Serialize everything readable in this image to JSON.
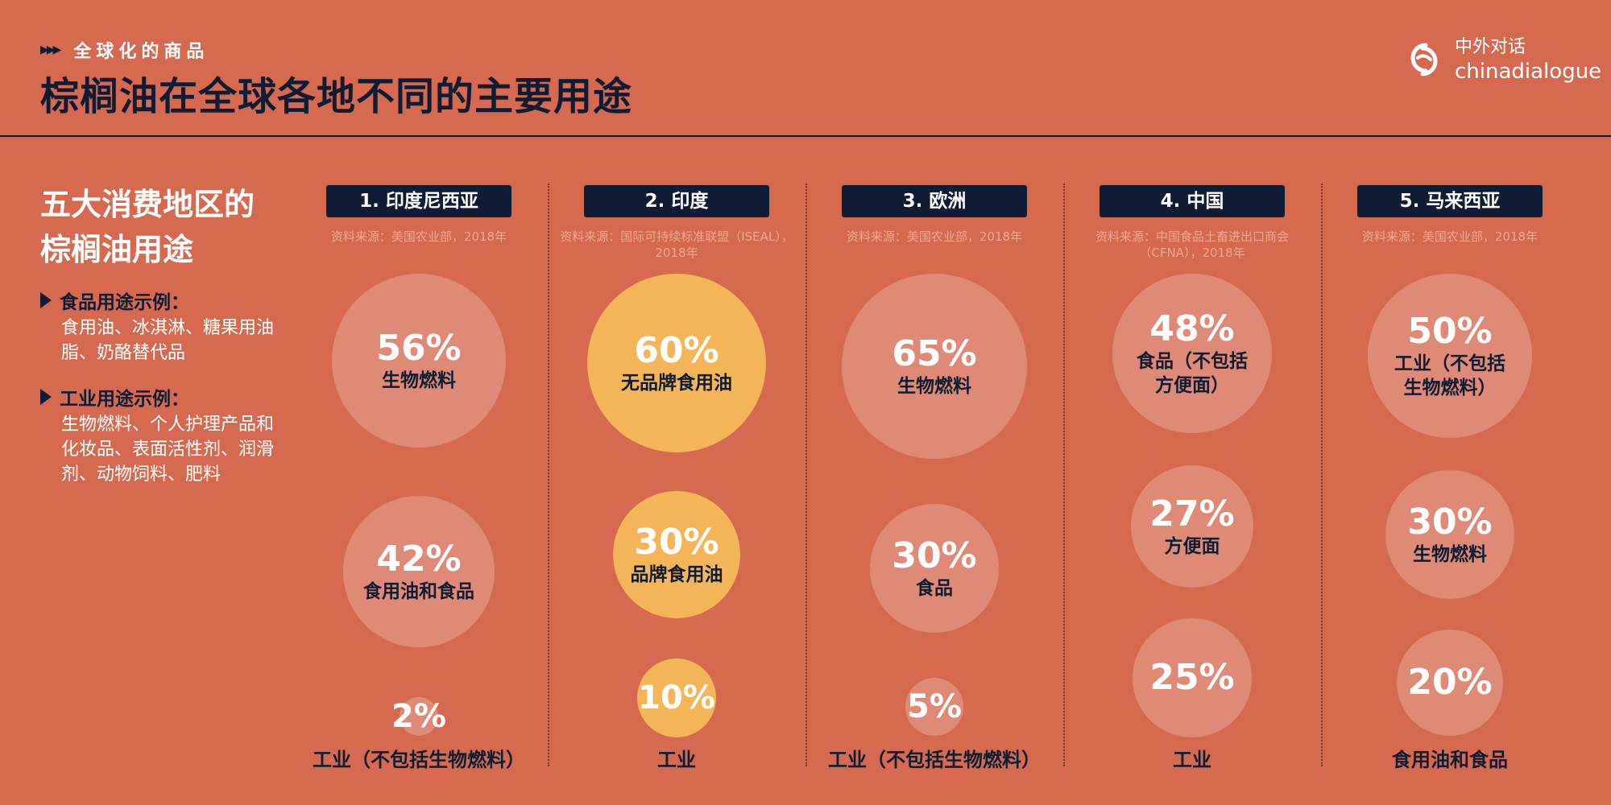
{
  "header": {
    "kicker": "全球化的商品",
    "title": "棕榈油在全球各地不同的主要用途"
  },
  "logo": {
    "cn": "中外对话",
    "en": "chinadialogue"
  },
  "sidebar": {
    "title_line1": "五大消费地区的",
    "title_line2": "棕榈油用途",
    "food_heading": "食品用途示例：",
    "food_body": "食用油、冰淇淋、糖果用油脂、奶酪替代品",
    "industry_heading": "工业用途示例：",
    "industry_body": "生物燃料、个人护理产品和化妆品、表面活性剂、润滑剂、动物饲料、肥料"
  },
  "columns": [
    {
      "heading": "1. 印度尼西亚",
      "source": "资料来源：美国农业部，2018年",
      "items": [
        {
          "pct": "56%",
          "label": "生物燃料",
          "value": 56
        },
        {
          "pct": "42%",
          "label": "食用油和食品",
          "value": 42
        },
        {
          "pct": "2%",
          "label": "",
          "value": 2
        }
      ],
      "bottom_label": "工业（不包括生物燃料）"
    },
    {
      "heading": "2. 印度",
      "source": "资料来源：国际可持续标准联盟（ISEAL），2018年",
      "items": [
        {
          "pct": "60%",
          "label": "无品牌食用油",
          "value": 60
        },
        {
          "pct": "30%",
          "label": "品牌食用油",
          "value": 30
        },
        {
          "pct": "10%",
          "label": "",
          "value": 10
        }
      ],
      "bottom_label": "工业"
    },
    {
      "heading": "3. 欧洲",
      "source": "资料来源：美国农业部，2018年",
      "items": [
        {
          "pct": "65%",
          "label": "生物燃料",
          "value": 65
        },
        {
          "pct": "30%",
          "label": "食品",
          "value": 30
        },
        {
          "pct": "5%",
          "label": "",
          "value": 5
        }
      ],
      "bottom_label": "工业（不包括生物燃料）"
    },
    {
      "heading": "4. 中国",
      "source": "资料来源：中国食品土畜进出口商会（CFNA），2018年",
      "items": [
        {
          "pct": "48%",
          "label": "食品（不包括方便面）",
          "value": 48
        },
        {
          "pct": "27%",
          "label": "方便面",
          "value": 27
        },
        {
          "pct": "25%",
          "label": "",
          "value": 25
        }
      ],
      "bottom_label": "工业"
    },
    {
      "heading": "5. 马来西亚",
      "source": "资料来源：美国农业部，2018年",
      "items": [
        {
          "pct": "50%",
          "label": "工业（不包括生物燃料）",
          "value": 50
        },
        {
          "pct": "30%",
          "label": "生物燃料",
          "value": 30
        },
        {
          "pct": "20%",
          "label": "",
          "value": 20
        }
      ],
      "bottom_label": "食用油和食品"
    }
  ],
  "colors": {
    "background": "#D66A51",
    "navy": "#0F1C33",
    "bubble_pink": "#DF8A76",
    "bubble_yellow": "#F3B557"
  }
}
